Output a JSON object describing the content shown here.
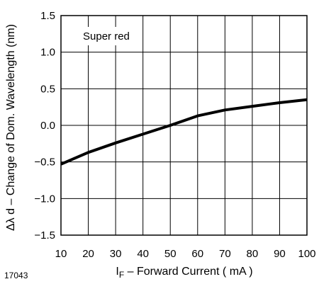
{
  "chart_data": {
    "type": "line",
    "x_tick_labels": [
      "10",
      "20",
      "30",
      "40",
      "50",
      "60",
      "70",
      "80",
      "90",
      "100"
    ],
    "y_tick_labels": [
      "1.5",
      "1.0",
      "0.5",
      "0.0",
      "−0.5",
      "−1.0",
      "−1.5"
    ],
    "xlim": [
      10,
      100
    ],
    "ylim": [
      -1.5,
      1.5
    ],
    "grid": true,
    "series": [
      {
        "name": "Super red",
        "x": [
          10,
          20,
          30,
          40,
          50,
          60,
          70,
          80,
          90,
          100
        ],
        "y": [
          -0.53,
          -0.37,
          -0.24,
          -0.12,
          0.0,
          0.13,
          0.21,
          0.26,
          0.31,
          0.35
        ]
      }
    ],
    "legend_text": "Super red",
    "xlabel": {
      "symbol": "I",
      "subscript": "F",
      "rest": " – Forward Current ( mA )"
    },
    "ylabel": "Δλ d – Change of Dom. Wavelength (nm)",
    "figure_id": "17043"
  }
}
